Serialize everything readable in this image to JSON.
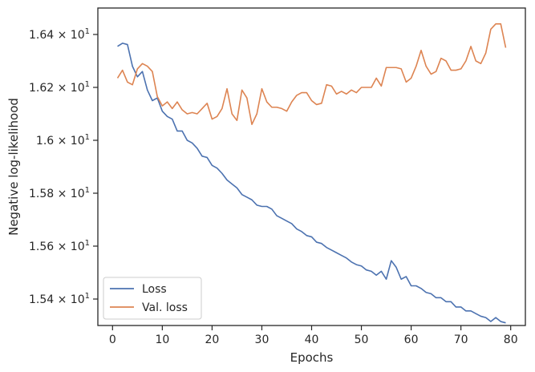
{
  "chart_data": {
    "type": "line",
    "xlabel": "Epochs",
    "ylabel": "Negative log-likelihood",
    "xlim": [
      -2.95,
      82.95
    ],
    "ylim": [
      15.3,
      16.5
    ],
    "x_ticks": [
      0,
      10,
      20,
      30,
      40,
      50,
      60,
      70,
      80
    ],
    "y_ticks": [
      {
        "value": 15.4,
        "mantissa": "1.54",
        "base": "10",
        "exp": "1"
      },
      {
        "value": 15.6,
        "mantissa": "1.56",
        "base": "10",
        "exp": "1"
      },
      {
        "value": 15.8,
        "mantissa": "1.58",
        "base": "10",
        "exp": "1"
      },
      {
        "value": 16.0,
        "mantissa": "1.6",
        "base": "10",
        "exp": "1"
      },
      {
        "value": 16.2,
        "mantissa": "1.62",
        "base": "10",
        "exp": "1"
      },
      {
        "value": 16.4,
        "mantissa": "1.64",
        "base": "10",
        "exp": "1"
      }
    ],
    "grid": false,
    "legend_position": "lower-left",
    "series": [
      {
        "name": "Loss",
        "color": "#4c72b0",
        "x": [
          1,
          2,
          3,
          4,
          5,
          6,
          7,
          8,
          9,
          10,
          11,
          12,
          13,
          14,
          15,
          16,
          17,
          18,
          19,
          20,
          21,
          22,
          23,
          24,
          25,
          26,
          27,
          28,
          29,
          30,
          31,
          32,
          33,
          34,
          35,
          36,
          37,
          38,
          39,
          40,
          41,
          42,
          43,
          44,
          45,
          46,
          47,
          48,
          49,
          50,
          51,
          52,
          53,
          54,
          55,
          56,
          57,
          58,
          59,
          60,
          61,
          62,
          63,
          64,
          65,
          66,
          67,
          68,
          69,
          70,
          71,
          72,
          73,
          74,
          75,
          76,
          77,
          78,
          79
        ],
        "y": [
          16.355,
          16.367,
          16.362,
          16.28,
          16.24,
          16.26,
          16.19,
          16.15,
          16.16,
          16.11,
          16.09,
          16.08,
          16.035,
          16.035,
          16.0,
          15.99,
          15.97,
          15.94,
          15.935,
          15.905,
          15.895,
          15.875,
          15.85,
          15.835,
          15.82,
          15.795,
          15.785,
          15.775,
          15.755,
          15.75,
          15.75,
          15.74,
          15.715,
          15.705,
          15.695,
          15.685,
          15.665,
          15.655,
          15.64,
          15.635,
          15.615,
          15.61,
          15.595,
          15.585,
          15.575,
          15.565,
          15.555,
          15.54,
          15.53,
          15.525,
          15.51,
          15.505,
          15.49,
          15.505,
          15.475,
          15.545,
          15.52,
          15.475,
          15.485,
          15.45,
          15.45,
          15.44,
          15.425,
          15.42,
          15.405,
          15.405,
          15.39,
          15.39,
          15.37,
          15.37,
          15.355,
          15.355,
          15.345,
          15.335,
          15.33,
          15.315,
          15.33,
          15.315,
          15.31
        ]
      },
      {
        "name": "Val. loss",
        "color": "#dd8452",
        "x": [
          1,
          2,
          3,
          4,
          5,
          6,
          7,
          8,
          9,
          10,
          11,
          12,
          13,
          14,
          15,
          16,
          17,
          18,
          19,
          20,
          21,
          22,
          23,
          24,
          25,
          26,
          27,
          28,
          29,
          30,
          31,
          32,
          33,
          34,
          35,
          36,
          37,
          38,
          39,
          40,
          41,
          42,
          43,
          44,
          45,
          46,
          47,
          48,
          49,
          50,
          51,
          52,
          53,
          54,
          55,
          56,
          57,
          58,
          59,
          60,
          61,
          62,
          63,
          64,
          65,
          66,
          67,
          68,
          69,
          70,
          71,
          72,
          73,
          74,
          75,
          76,
          77,
          78,
          79
        ],
        "y": [
          16.235,
          16.265,
          16.22,
          16.21,
          16.27,
          16.29,
          16.28,
          16.26,
          16.165,
          16.13,
          16.145,
          16.12,
          16.145,
          16.115,
          16.1,
          16.105,
          16.1,
          16.12,
          16.14,
          16.08,
          16.09,
          16.12,
          16.195,
          16.1,
          16.075,
          16.19,
          16.16,
          16.06,
          16.1,
          16.195,
          16.145,
          16.125,
          16.125,
          16.12,
          16.11,
          16.145,
          16.17,
          16.18,
          16.18,
          16.15,
          16.135,
          16.14,
          16.21,
          16.205,
          16.175,
          16.185,
          16.175,
          16.19,
          16.18,
          16.2,
          16.2,
          16.2,
          16.235,
          16.205,
          16.275,
          16.275,
          16.275,
          16.27,
          16.22,
          16.235,
          16.28,
          16.34,
          16.28,
          16.25,
          16.26,
          16.31,
          16.3,
          16.265,
          16.265,
          16.27,
          16.3,
          16.355,
          16.3,
          16.29,
          16.33,
          16.42,
          16.44,
          16.44,
          16.35
        ]
      }
    ]
  }
}
